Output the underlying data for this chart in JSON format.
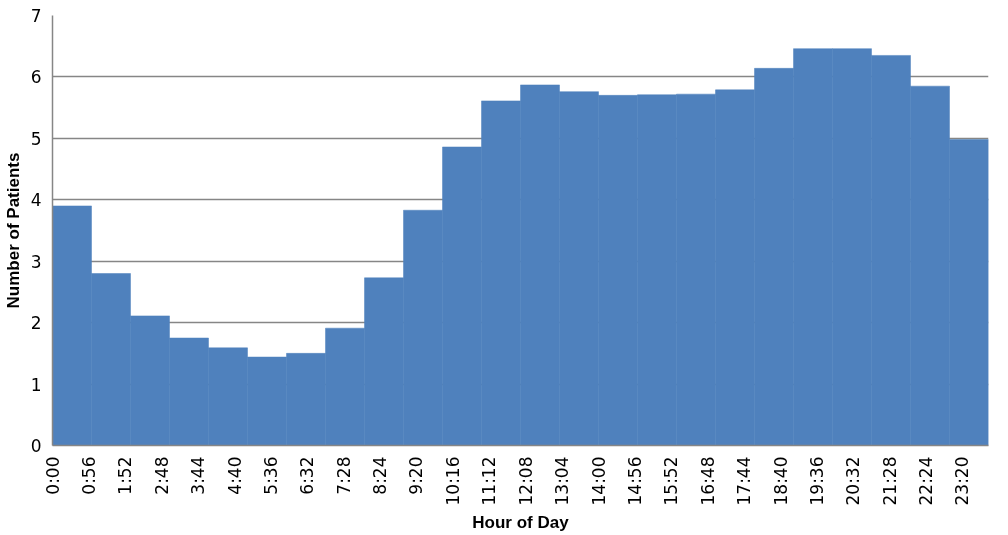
{
  "chart_data": {
    "type": "histogram",
    "xlabel": "Hour of Day",
    "ylabel": "Number of Patients",
    "bins": [
      0,
      1,
      2,
      3,
      4,
      5,
      6,
      7,
      8,
      9,
      10,
      11,
      12,
      13,
      14,
      15,
      16,
      17,
      18,
      19,
      20,
      21,
      22,
      23,
      24
    ],
    "values": [
      3.9,
      2.8,
      2.11,
      1.75,
      1.59,
      1.44,
      1.5,
      1.91,
      2.73,
      3.83,
      4.86,
      5.61,
      5.87,
      5.76,
      5.7,
      5.71,
      5.72,
      5.79,
      6.14,
      6.46,
      6.46,
      6.35,
      5.85,
      4.98
    ],
    "color": "#4f81bd",
    "xlim": [
      0,
      24
    ],
    "ylim": [
      0,
      7
    ],
    "xticks": [
      {
        "value": 0,
        "label": "0:00"
      },
      {
        "value": 0.9333,
        "label": "0:56"
      },
      {
        "value": 1.8667,
        "label": "1:52"
      },
      {
        "value": 2.8,
        "label": "2:48"
      },
      {
        "value": 3.7333,
        "label": "3:44"
      },
      {
        "value": 4.6667,
        "label": "4:40"
      },
      {
        "value": 5.6,
        "label": "5:36"
      },
      {
        "value": 6.5333,
        "label": "6:32"
      },
      {
        "value": 7.4667,
        "label": "7:28"
      },
      {
        "value": 8.4,
        "label": "8:24"
      },
      {
        "value": 9.3333,
        "label": "9:20"
      },
      {
        "value": 10.2667,
        "label": "10:16"
      },
      {
        "value": 11.2,
        "label": "11:12"
      },
      {
        "value": 12.1333,
        "label": "12:08"
      },
      {
        "value": 13.0667,
        "label": "13:04"
      },
      {
        "value": 14,
        "label": "14:00"
      },
      {
        "value": 14.9333,
        "label": "14:56"
      },
      {
        "value": 15.8667,
        "label": "15:52"
      },
      {
        "value": 16.8,
        "label": "16:48"
      },
      {
        "value": 17.7333,
        "label": "17:44"
      },
      {
        "value": 18.6667,
        "label": "18:40"
      },
      {
        "value": 19.6,
        "label": "19:36"
      },
      {
        "value": 20.5333,
        "label": "20:32"
      },
      {
        "value": 21.4667,
        "label": "21:28"
      },
      {
        "value": 22.4,
        "label": "22:24"
      },
      {
        "value": 23.3333,
        "label": "23:20"
      }
    ],
    "yticks": [
      0,
      1,
      2,
      3,
      4,
      5,
      6,
      7
    ],
    "grid": "y"
  }
}
